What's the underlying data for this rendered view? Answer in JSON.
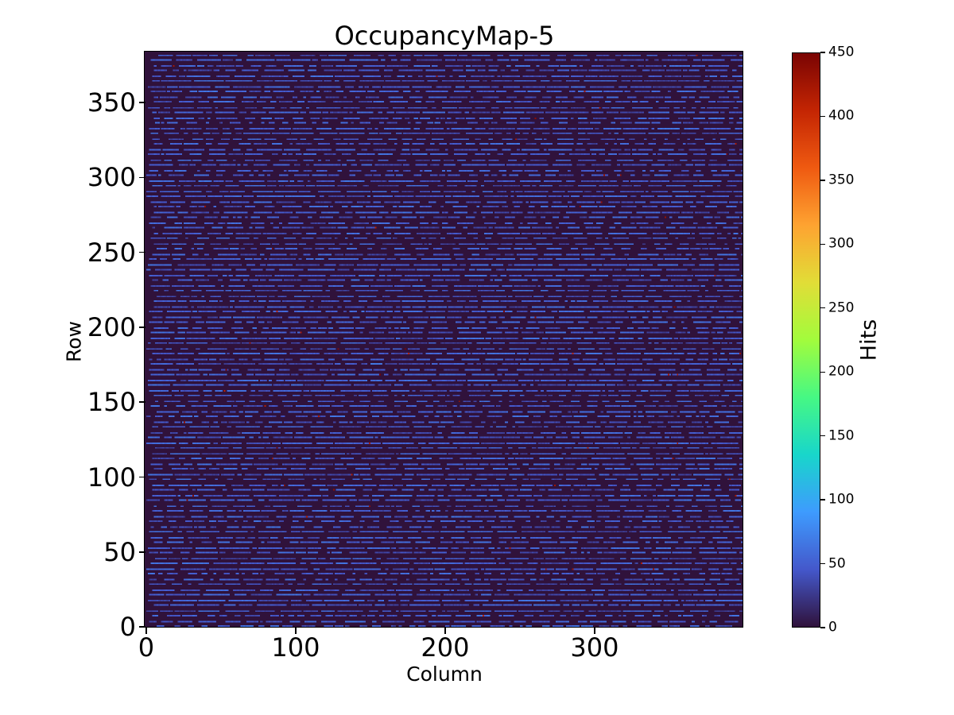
{
  "chart_data": {
    "type": "heatmap",
    "title": "OccupancyMap-5",
    "xlabel": "Column",
    "ylabel": "Row",
    "x_range": [
      0,
      400
    ],
    "y_range": [
      0,
      384
    ],
    "x_ticks": [
      0,
      100,
      200,
      300
    ],
    "y_ticks": [
      0,
      50,
      100,
      150,
      200,
      250,
      300,
      350
    ],
    "grid": false,
    "legend": false,
    "colorbar": {
      "label": "Hits",
      "vmin": 0,
      "vmax": 450,
      "ticks": [
        0,
        50,
        100,
        150,
        200,
        250,
        300,
        350,
        400,
        450
      ],
      "position": "right"
    },
    "colormap": "turbo",
    "colormap_stops": [
      "#30123b",
      "#4458cb",
      "#3e9bfe",
      "#18d6cb",
      "#46f884",
      "#a2fc3c",
      "#e1dd37",
      "#fea331",
      "#ef5a11",
      "#c42503",
      "#7a0403"
    ],
    "pattern": {
      "description": "Occupancy map: background near 0 hits (dark purple), horizontal dashed stripe rows of roughly 30-70 hits on rows spaced alternately 3 and 4 apart across all 384 rows, with sparse isolated hot pixels near 400-450 hits",
      "background_value": 0,
      "stripe_row_gaps": [
        3,
        4
      ],
      "stripe_value_min": 30,
      "stripe_value_max": 62,
      "value_jitter": 14,
      "dash_min_len": 2,
      "dash_max_len": 26,
      "gap_max_len": 9,
      "hot_pixel_count": 60,
      "hot_value_min": 405,
      "hot_value_max": 450,
      "seed": 987654321
    }
  }
}
